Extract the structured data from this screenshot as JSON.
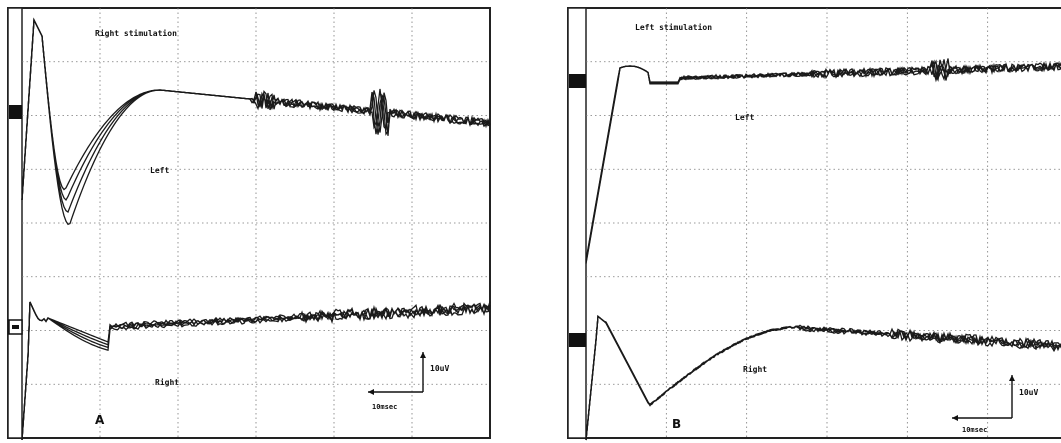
{
  "chart_data": [
    {
      "type": "line",
      "panel_label": "A",
      "title": "Right stimulation",
      "annotations": [
        "Left",
        "Right"
      ],
      "scale_bar": {
        "amplitude": "10uV",
        "time": "10msec"
      },
      "traces": [
        {
          "name": "Left",
          "overlays": 4
        },
        {
          "name": "Right",
          "overlays": 4
        }
      ]
    },
    {
      "type": "line",
      "panel_label": "B",
      "title": "Left stimulation",
      "annotations": [
        "Left",
        "Right"
      ],
      "scale_bar": {
        "amplitude": "10uV",
        "time": "10msec"
      },
      "traces": [
        {
          "name": "Left",
          "overlays": 4
        },
        {
          "name": "Right",
          "overlays": 4
        }
      ]
    }
  ]
}
